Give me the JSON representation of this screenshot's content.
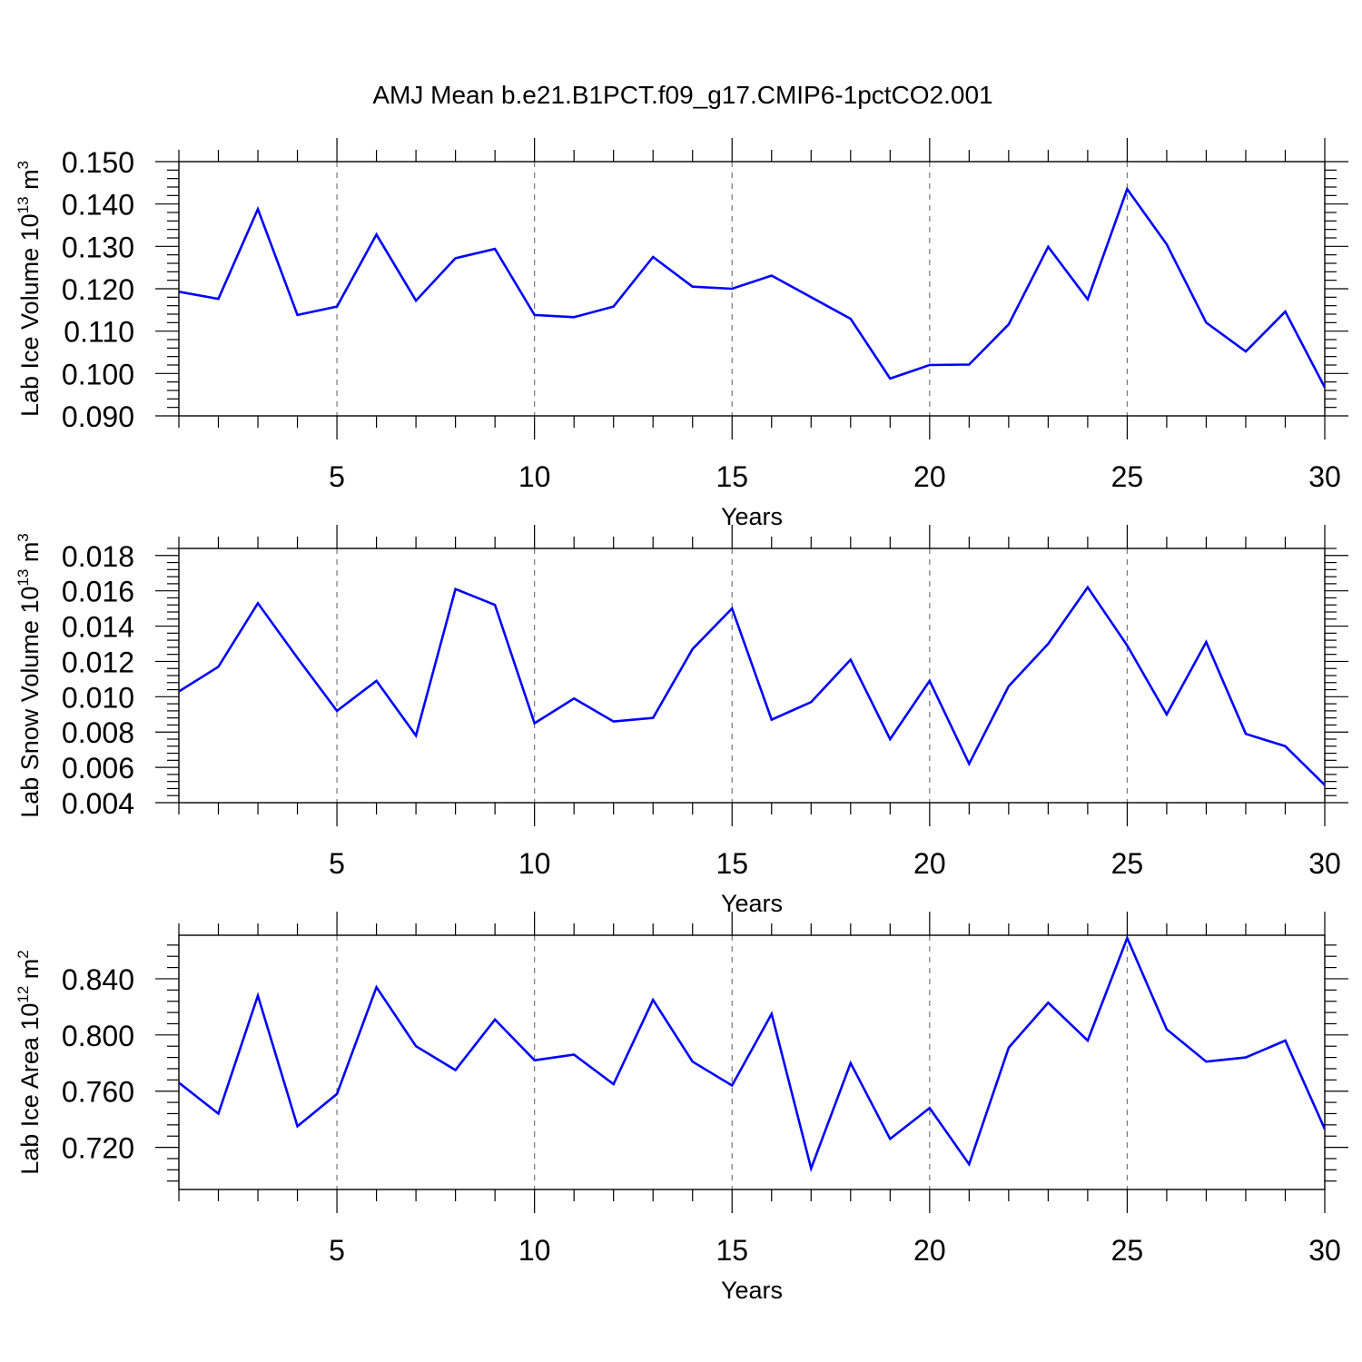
{
  "figure": {
    "title": "AMJ Mean b.e21.B1PCT.f09_g17.CMIP6-1pctCO2.001",
    "line_color": "#0000ff",
    "grid_color": "#777777"
  },
  "chart_data": [
    {
      "type": "line",
      "title": "AMJ Mean b.e21.B1PCT.f09_g17.CMIP6-1pctCO2.001",
      "xlabel": "Years",
      "ylabel_main": "Lab Ice Volume 10",
      "ylabel_exp": "13",
      "ylabel_unit": " m",
      "ylabel_unit_exp": "3",
      "xlim": [
        1,
        30
      ],
      "ylim": [
        0.09,
        0.15
      ],
      "xticks": [
        5,
        10,
        15,
        20,
        25,
        30
      ],
      "xtick_labels": [
        "5",
        "10",
        "15",
        "20",
        "25",
        "30"
      ],
      "yticks": [
        0.09,
        0.1,
        0.11,
        0.12,
        0.13,
        0.14,
        0.15
      ],
      "ytick_labels": [
        "0.090",
        "0.100",
        "0.110",
        "0.120",
        "0.130",
        "0.140",
        "0.150"
      ],
      "grid": "vertical dashed at major x ticks",
      "x": [
        1,
        2,
        3,
        4,
        5,
        6,
        7,
        8,
        9,
        10,
        11,
        12,
        13,
        14,
        15,
        16,
        17,
        18,
        19,
        20,
        21,
        22,
        23,
        24,
        25,
        26,
        27,
        28,
        29,
        30
      ],
      "series": [
        {
          "values": [
            0.1193,
            0.1176,
            0.1388,
            0.1138,
            0.1158,
            0.1328,
            0.1172,
            0.1272,
            0.1294,
            0.1138,
            0.1133,
            0.1158,
            0.1275,
            0.1205,
            0.12,
            0.1231,
            0.118,
            0.1129,
            0.0988,
            0.102,
            0.1021,
            0.1116,
            0.1299,
            0.1175,
            0.1435,
            0.1305,
            0.112,
            0.1052,
            0.1146,
            0.0967
          ]
        }
      ]
    },
    {
      "type": "line",
      "xlabel": "Years",
      "ylabel_main": "Lab Snow Volume 10",
      "ylabel_exp": "13",
      "ylabel_unit": " m",
      "ylabel_unit_exp": "3",
      "xlim": [
        1,
        30
      ],
      "ylim": [
        0.004,
        0.0184
      ],
      "xticks": [
        5,
        10,
        15,
        20,
        25,
        30
      ],
      "xtick_labels": [
        "5",
        "10",
        "15",
        "20",
        "25",
        "30"
      ],
      "yticks": [
        0.004,
        0.006,
        0.008,
        0.01,
        0.012,
        0.014,
        0.016,
        0.018
      ],
      "ytick_labels": [
        "0.004",
        "0.006",
        "0.008",
        "0.010",
        "0.012",
        "0.014",
        "0.016",
        "0.018"
      ],
      "grid": "vertical dashed at major x ticks",
      "x": [
        1,
        2,
        3,
        4,
        5,
        6,
        7,
        8,
        9,
        10,
        11,
        12,
        13,
        14,
        15,
        16,
        17,
        18,
        19,
        20,
        21,
        22,
        23,
        24,
        25,
        26,
        27,
        28,
        29,
        30
      ],
      "series": [
        {
          "values": [
            0.0103,
            0.0117,
            0.0153,
            0.0122,
            0.0092,
            0.0109,
            0.0078,
            0.0161,
            0.0152,
            0.0085,
            0.0099,
            0.0086,
            0.0088,
            0.0127,
            0.015,
            0.0087,
            0.0097,
            0.0121,
            0.0076,
            0.0109,
            0.0062,
            0.0106,
            0.013,
            0.0162,
            0.0129,
            0.009,
            0.0131,
            0.0079,
            0.0072,
            0.005
          ]
        }
      ]
    },
    {
      "type": "line",
      "xlabel": "Years",
      "ylabel_main": "Lab Ice Area 10",
      "ylabel_exp": "12",
      "ylabel_unit": " m",
      "ylabel_unit_exp": "2",
      "xlim": [
        1,
        30
      ],
      "ylim": [
        0.69,
        0.871
      ],
      "xticks": [
        5,
        10,
        15,
        20,
        25,
        30
      ],
      "xtick_labels": [
        "5",
        "10",
        "15",
        "20",
        "25",
        "30"
      ],
      "yticks": [
        0.72,
        0.76,
        0.8,
        0.84
      ],
      "ytick_labels": [
        "0.720",
        "0.760",
        "0.800",
        "0.840"
      ],
      "grid": "vertical dashed at major x ticks",
      "x": [
        1,
        2,
        3,
        4,
        5,
        6,
        7,
        8,
        9,
        10,
        11,
        12,
        13,
        14,
        15,
        16,
        17,
        18,
        19,
        20,
        21,
        22,
        23,
        24,
        25,
        26,
        27,
        28,
        29,
        30
      ],
      "series": [
        {
          "values": [
            0.766,
            0.744,
            0.828,
            0.735,
            0.758,
            0.834,
            0.792,
            0.775,
            0.811,
            0.782,
            0.786,
            0.765,
            0.825,
            0.781,
            0.764,
            0.815,
            0.705,
            0.78,
            0.726,
            0.748,
            0.708,
            0.791,
            0.823,
            0.796,
            0.869,
            0.804,
            0.781,
            0.784,
            0.796,
            0.733
          ]
        }
      ]
    }
  ]
}
